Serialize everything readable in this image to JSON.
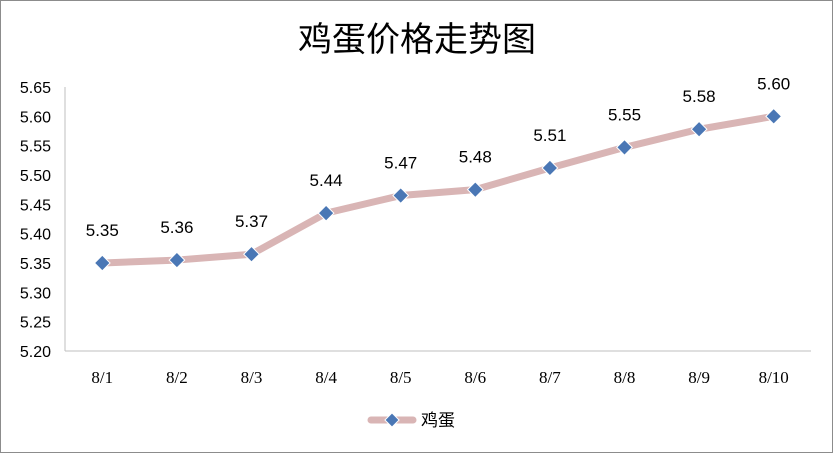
{
  "chart_data": {
    "type": "line",
    "title": "鸡蛋价格走势图",
    "xlabel": "",
    "ylabel": "",
    "categories": [
      "8/1",
      "8/2",
      "8/3",
      "8/4",
      "8/5",
      "8/6",
      "8/7",
      "8/8",
      "8/9",
      "8/10"
    ],
    "series": [
      {
        "name": "鸡蛋",
        "values": [
          5.35,
          5.355,
          5.365,
          5.435,
          5.465,
          5.475,
          5.512,
          5.547,
          5.578,
          5.6
        ],
        "labels": [
          "5.35",
          "5.36",
          "5.37",
          "5.44",
          "5.47",
          "5.48",
          "5.51",
          "5.55",
          "5.58",
          "5.60"
        ],
        "line_color": "#d9b5b5",
        "marker_color": "#4a77b5",
        "marker_shape": "diamond"
      }
    ],
    "ylim": [
      5.2,
      5.65
    ],
    "yticks": [
      "5.20",
      "5.25",
      "5.30",
      "5.35",
      "5.40",
      "5.45",
      "5.50",
      "5.55",
      "5.60",
      "5.65"
    ],
    "grid": false,
    "legend_position": "bottom"
  }
}
